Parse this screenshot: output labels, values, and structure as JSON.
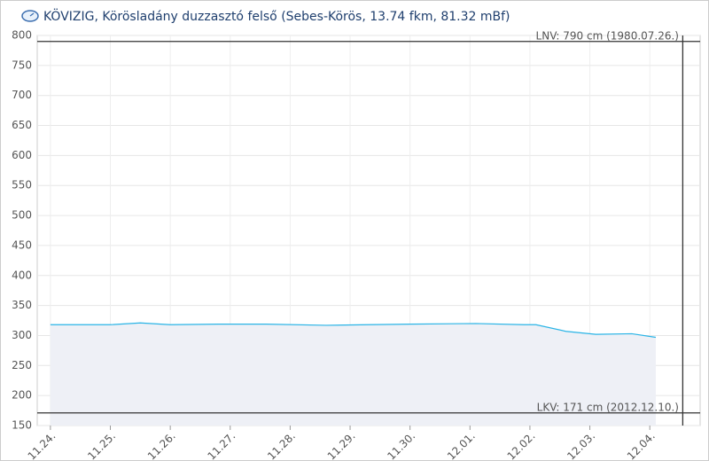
{
  "chart_data": {
    "type": "area",
    "title": "KÖVIZIG, Körösladány duzzasztó felső (Sebes-Körös, 13.74 fkm, 81.32 mBf)",
    "x": [
      0,
      1,
      1.5,
      2,
      2.8,
      3.6,
      4.6,
      5.3,
      6,
      7.1,
      7.9,
      8.1,
      8.6,
      9.1,
      9.7,
      10.1
    ],
    "series": [
      {
        "color": "#2ab4e6",
        "values": [
          318,
          318,
          321,
          318,
          319,
          319,
          317,
          318,
          319,
          320,
          318,
          318,
          307,
          302,
          303,
          297
        ]
      }
    ],
    "xlim": [
      -0.22,
      10.84
    ],
    "xticks": [
      {
        "value": 0,
        "label": "11.24."
      },
      {
        "value": 1,
        "label": "11.25."
      },
      {
        "value": 2,
        "label": "11.26."
      },
      {
        "value": 3,
        "label": "11.27."
      },
      {
        "value": 4,
        "label": "11.28."
      },
      {
        "value": 5,
        "label": "11.29."
      },
      {
        "value": 6,
        "label": "11.30."
      },
      {
        "value": 7,
        "label": "12.01."
      },
      {
        "value": 8,
        "label": "12.02."
      },
      {
        "value": 9,
        "label": "12.03."
      },
      {
        "value": 10,
        "label": "12.04."
      }
    ],
    "ylim": [
      150,
      800
    ],
    "yticks": [
      150,
      200,
      250,
      300,
      350,
      400,
      450,
      500,
      550,
      600,
      650,
      700,
      750,
      800
    ],
    "grid": true,
    "reference_lines": [
      {
        "value": 790,
        "label": "LNV: 790 cm (1980.07.26.)"
      },
      {
        "value": 171,
        "label": "LKV: 171 cm (2012.12.10.)"
      }
    ],
    "vline_x": 10.55
  }
}
